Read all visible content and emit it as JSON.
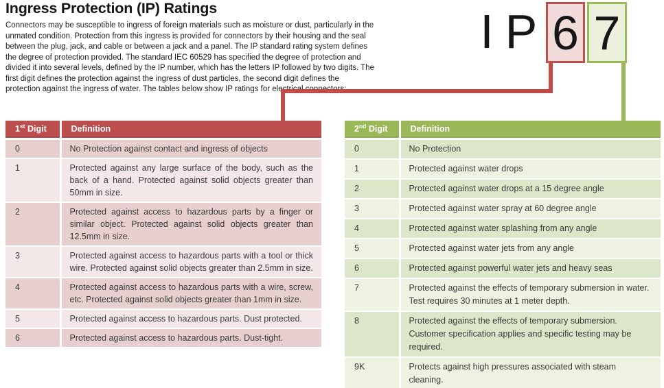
{
  "page": {
    "title": "Ingress Protection (IP) Ratings",
    "intro": "Connectors may be susceptible to ingress of foreign materials such as moisture or dust, particularly in the unmated condition. Protection from this ingress is provided for connectors by their housing and the seal between the plug, jack, and cable or between a jack and a panel. The IP standard rating system defines the degree of protection provided. The standard IEC 60529 has specified the degree of protection and divided it into several levels, defined by the IP number, which has the letters IP followed by two digits. The first digit defines the protection against the ingress of dust particles, the second digit defines the protection against the ingress of water. The tables below show IP ratings for electrical connectors:"
  },
  "graphic": {
    "letter_i": "I",
    "letter_p": "P",
    "first_digit": "6",
    "second_digit": "7"
  },
  "left_table": {
    "header": {
      "digit_base": "1",
      "digit_sup": "st",
      "digit_rest": " Digit",
      "definition": "Definition"
    },
    "rows": [
      {
        "digit": "0",
        "definition": "No Protection against contact and ingress of objects"
      },
      {
        "digit": "1",
        "definition": "Protected against any large surface of the body, such as the back of a hand. Protected against solid objects greater than 50mm in size."
      },
      {
        "digit": "2",
        "definition": "Protected against access to hazardous parts by a finger or similar object. Protected against solid objects greater than 12.5mm in size."
      },
      {
        "digit": "3",
        "definition": "Protected against access to hazardous parts with a tool or thick wire. Protected against solid objects greater than 2.5mm in size."
      },
      {
        "digit": "4",
        "definition": "Protected against access to hazardous parts with a wire, screw, etc. Protected against solid objects greater than 1mm in size."
      },
      {
        "digit": "5",
        "definition": "Protected against access to hazardous parts. Dust protected."
      },
      {
        "digit": "6",
        "definition": "Protected against access to hazardous parts. Dust-tight."
      }
    ]
  },
  "right_table": {
    "header": {
      "digit_base": "2",
      "digit_sup": "nd",
      "digit_rest": " Digit",
      "definition": "Definition"
    },
    "rows": [
      {
        "digit": "0",
        "definition": "No Protection"
      },
      {
        "digit": "1",
        "definition": "Protected against water drops"
      },
      {
        "digit": "2",
        "definition": "Protected against water drops at a 15 degree angle"
      },
      {
        "digit": "3",
        "definition": "Protected against water spray at 60 degree angle"
      },
      {
        "digit": "4",
        "definition": "Protected against water splashing from any angle"
      },
      {
        "digit": "5",
        "definition": "Protected against water jets from any angle"
      },
      {
        "digit": "6",
        "definition": "Protected against powerful water jets and heavy seas"
      },
      {
        "digit": "7",
        "definition": "Protected against the effects of temporary submersion in water. Test requires 30 minutes at 1 meter depth."
      },
      {
        "digit": "8",
        "definition": "Protected against the effects of temporary submersion. Customer specification applies and specific testing may be required."
      },
      {
        "digit": "9K",
        "definition": "Protects against high pressures associated with steam cleaning."
      }
    ]
  },
  "colors": {
    "title-text": "#161616",
    "body-text": "#212121",
    "cell-text": "#3a3a3a",
    "header-text": "#ffffff",
    "red-header": "#bc4f4d",
    "red-row-dark": "#e6cfce",
    "red-row-light": "#f3e8e7",
    "red-line": "#bf4c49",
    "red-box-border": "#c0504d",
    "red-box-fill": "#f2dcdb",
    "green-header": "#9ab857",
    "green-row-dark": "#dce6c8",
    "green-row-light": "#edf2e1",
    "green-line": "#9ab857",
    "green-box-border": "#9bbb59",
    "green-box-fill": "#ebf1dc"
  }
}
